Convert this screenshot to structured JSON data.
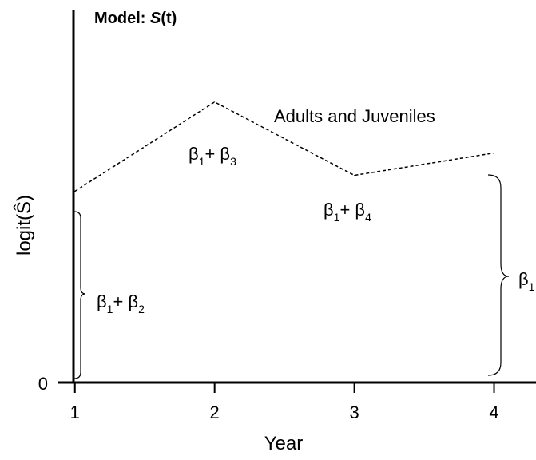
{
  "title": {
    "prefix": "Model: ",
    "italic": "S",
    "suffix": "(t)"
  },
  "ylabel": "logit(Ŝ)",
  "xlabel": "Year",
  "zero_label": "0",
  "series_label": "Adults and Juveniles",
  "chart_data": {
    "type": "line",
    "x": [
      1,
      2,
      3,
      4
    ],
    "y": [
      0.6,
      0.88,
      0.65,
      0.72
    ],
    "xticks": [
      "1",
      "2",
      "3",
      "4"
    ],
    "ylim": [
      0,
      1.2
    ],
    "xlim": [
      0.99,
      4.3
    ],
    "line_style": "dashed",
    "grid": false
  },
  "annotations": [
    {
      "id": "b1b3",
      "base": "β",
      "sub1": "1",
      "op": "+ ",
      "base2": "β",
      "sub2": "3"
    },
    {
      "id": "b1b4",
      "base": "β",
      "sub1": "1",
      "op": "+ ",
      "base2": "β",
      "sub2": "4"
    },
    {
      "id": "b1b2",
      "base": "β",
      "sub1": "1",
      "op": "+ ",
      "base2": "β",
      "sub2": "2"
    },
    {
      "id": "b1",
      "base": "β",
      "sub1": "1"
    }
  ]
}
